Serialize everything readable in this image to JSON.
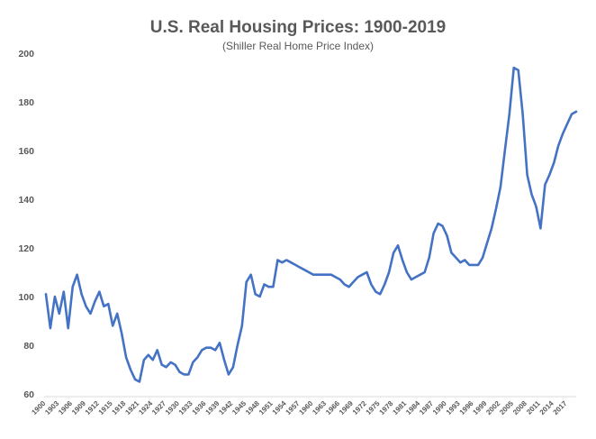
{
  "chart_data": {
    "type": "line",
    "title": "U.S. Real Housing Prices: 1900-2019",
    "subtitle": "(Shiller Real Home Price Index)",
    "xlabel": "",
    "ylabel": "",
    "ylim": [
      60,
      200
    ],
    "xlim": [
      1900,
      2019
    ],
    "yticks": [
      60,
      80,
      100,
      120,
      140,
      160,
      180,
      200
    ],
    "xticks": [
      "1900",
      "1903",
      "1906",
      "1909",
      "1912",
      "1915",
      "1918",
      "1921",
      "1924",
      "1927",
      "1930",
      "1933",
      "1936",
      "1939",
      "1942",
      "1945",
      "1948",
      "1951",
      "1954",
      "1957",
      "1960",
      "1963",
      "1966",
      "1969",
      "1972",
      "1975",
      "1978",
      "1981",
      "1984",
      "1987",
      "1990",
      "1993",
      "1996",
      "1999",
      "2002",
      "2005",
      "2008",
      "2011",
      "2014",
      "2017"
    ],
    "grid": false,
    "legend": "none",
    "line_color": "#4472c4",
    "series": [
      {
        "x": [
          1900,
          1901,
          1902,
          1903,
          1904,
          1905,
          1906,
          1907,
          1908,
          1909,
          1910,
          1911,
          1912,
          1913,
          1914,
          1915,
          1916,
          1917,
          1918,
          1919,
          1920,
          1921,
          1922,
          1923,
          1924,
          1925,
          1926,
          1927,
          1928,
          1929,
          1930,
          1931,
          1932,
          1933,
          1934,
          1935,
          1936,
          1937,
          1938,
          1939,
          1940,
          1941,
          1942,
          1943,
          1944,
          1945,
          1946,
          1947,
          1948,
          1949,
          1950,
          1951,
          1952,
          1953,
          1954,
          1955,
          1956,
          1957,
          1958,
          1959,
          1960,
          1961,
          1962,
          1963,
          1964,
          1965,
          1966,
          1967,
          1968,
          1969,
          1970,
          1971,
          1972,
          1973,
          1974,
          1975,
          1976,
          1977,
          1978,
          1979,
          1980,
          1981,
          1982,
          1983,
          1984,
          1985,
          1986,
          1987,
          1988,
          1989,
          1990,
          1991,
          1992,
          1993,
          1994,
          1995,
          1996,
          1997,
          1998,
          1999,
          2000,
          2001,
          2002,
          2003,
          2004,
          2005,
          2006,
          2007,
          2008,
          2009,
          2010,
          2011,
          2012,
          2013,
          2014,
          2015,
          2016,
          2017,
          2018,
          2019
        ],
        "values": [
          101,
          87,
          100,
          93,
          102,
          87,
          104,
          109,
          101,
          96,
          93,
          98,
          102,
          96,
          97,
          88,
          93,
          85,
          75,
          70,
          66,
          65,
          74,
          76,
          74,
          78,
          72,
          71,
          73,
          72,
          69,
          68,
          68,
          73,
          75,
          78,
          79,
          79,
          78,
          81,
          74,
          68,
          71,
          80,
          88,
          106,
          109,
          101,
          100,
          105,
          104,
          104,
          115,
          114,
          115,
          114,
          113,
          112,
          111,
          110,
          109,
          109,
          109,
          109,
          109,
          108,
          107,
          105,
          104,
          106,
          108,
          109,
          110,
          105,
          102,
          101,
          105,
          110,
          118,
          121,
          115,
          110,
          107,
          108,
          109,
          110,
          116,
          126,
          130,
          129,
          125,
          118,
          116,
          114,
          115,
          113,
          113,
          113,
          116,
          122,
          128,
          136,
          145,
          160,
          175,
          194,
          193,
          175,
          150,
          142,
          137,
          128,
          146,
          150,
          155,
          162,
          167,
          171,
          175,
          176
        ]
      }
    ]
  }
}
